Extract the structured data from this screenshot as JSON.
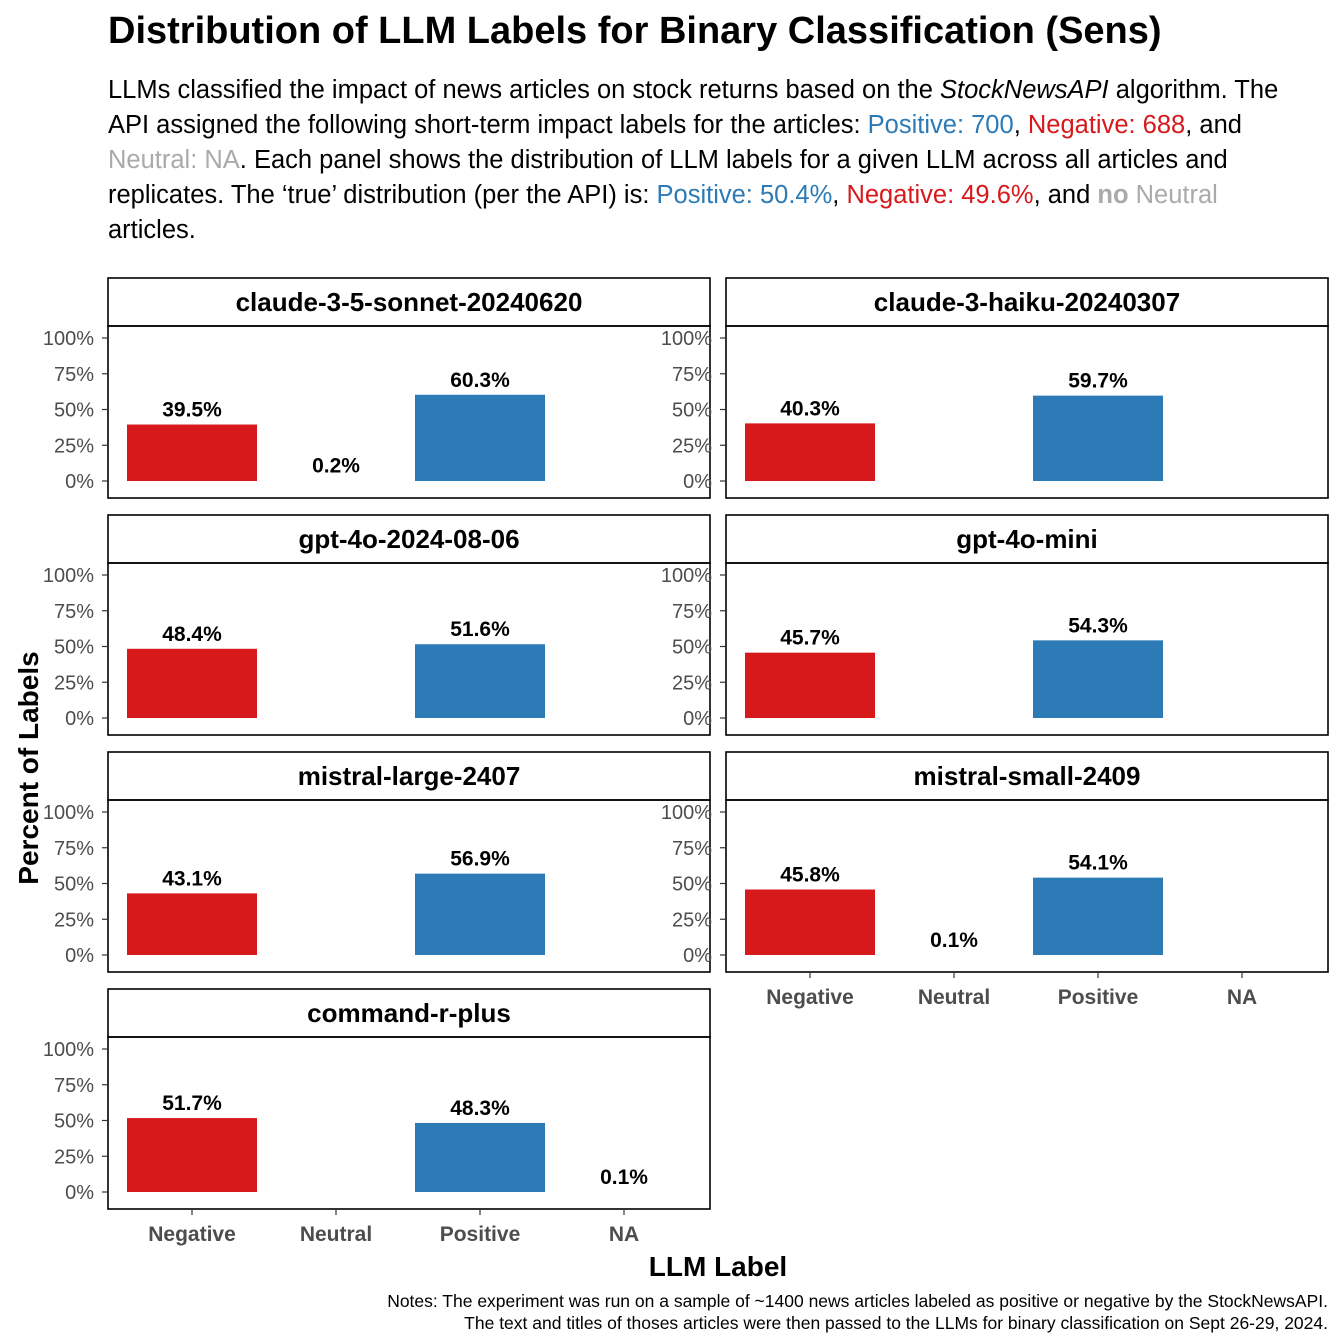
{
  "title": "Distribution of LLM Labels for Binary Classification (Sens)",
  "subtitle": {
    "t1": "LLMs classified the impact of news articles on stock returns based on the ",
    "api_name": "StockNewsAPI",
    "t2": " algorithm. The API assigned the following short-term impact labels for the articles: ",
    "pos_count": "Positive: 700",
    "t3": ", ",
    "neg_count": "Negative: 688",
    "t4": ", and ",
    "neu_count": "Neutral: NA",
    "t5": ". Each panel shows the distribution of LLM labels for a given LLM across all articles and replicates. The ‘true’ distribution (per the API) is: ",
    "pos_pct": "Positive: 50.4%",
    "t6": ", ",
    "neg_pct": "Negative: 49.6%",
    "t7": ", and ",
    "no_word": "no",
    "t8": " ",
    "neu_word": "Neutral",
    "t9": " articles."
  },
  "notes": {
    "line1": "Notes: The experiment was run on a sample of ~1400 news articles labeled as positive or negative by the StockNewsAPI.",
    "line2": "The text and titles of thoses articles were then passed to the LLMs for binary classification on Sept 26-29, 2024."
  },
  "colors": {
    "Negative": "#d7191c",
    "Positive": "#2c7bb6",
    "Neutral": "#aaaaaa",
    "NA": "#808080"
  },
  "chart_data": {
    "type": "bar",
    "facet": "model",
    "xlabel": "LLM Label",
    "ylabel": "Percent of Labels",
    "categories": [
      "Negative",
      "Neutral",
      "Positive",
      "NA"
    ],
    "ylim": [
      0,
      100
    ],
    "yticks": [
      "0%",
      "25%",
      "50%",
      "75%",
      "100%"
    ],
    "panels": [
      {
        "name": "claude-3-5-sonnet-20240620",
        "values": [
          39.5,
          0.2,
          60.3,
          null
        ],
        "labels": [
          "39.5%",
          "0.2%",
          "60.3%",
          null
        ]
      },
      {
        "name": "claude-3-haiku-20240307",
        "values": [
          40.3,
          null,
          59.7,
          null
        ],
        "labels": [
          "40.3%",
          null,
          "59.7%",
          null
        ]
      },
      {
        "name": "gpt-4o-2024-08-06",
        "values": [
          48.4,
          null,
          51.6,
          null
        ],
        "labels": [
          "48.4%",
          null,
          "51.6%",
          null
        ]
      },
      {
        "name": "gpt-4o-mini",
        "values": [
          45.7,
          null,
          54.3,
          null
        ],
        "labels": [
          "45.7%",
          null,
          "54.3%",
          null
        ]
      },
      {
        "name": "mistral-large-2407",
        "values": [
          43.1,
          null,
          56.9,
          null
        ],
        "labels": [
          "43.1%",
          null,
          "56.9%",
          null
        ]
      },
      {
        "name": "mistral-small-2409",
        "values": [
          45.8,
          0.1,
          54.1,
          null
        ],
        "labels": [
          "45.8%",
          "0.1%",
          "54.1%",
          null
        ]
      },
      {
        "name": "command-r-plus",
        "values": [
          51.7,
          null,
          48.3,
          0.1
        ],
        "labels": [
          "51.7%",
          null,
          "48.3%",
          "0.1%"
        ]
      }
    ]
  }
}
